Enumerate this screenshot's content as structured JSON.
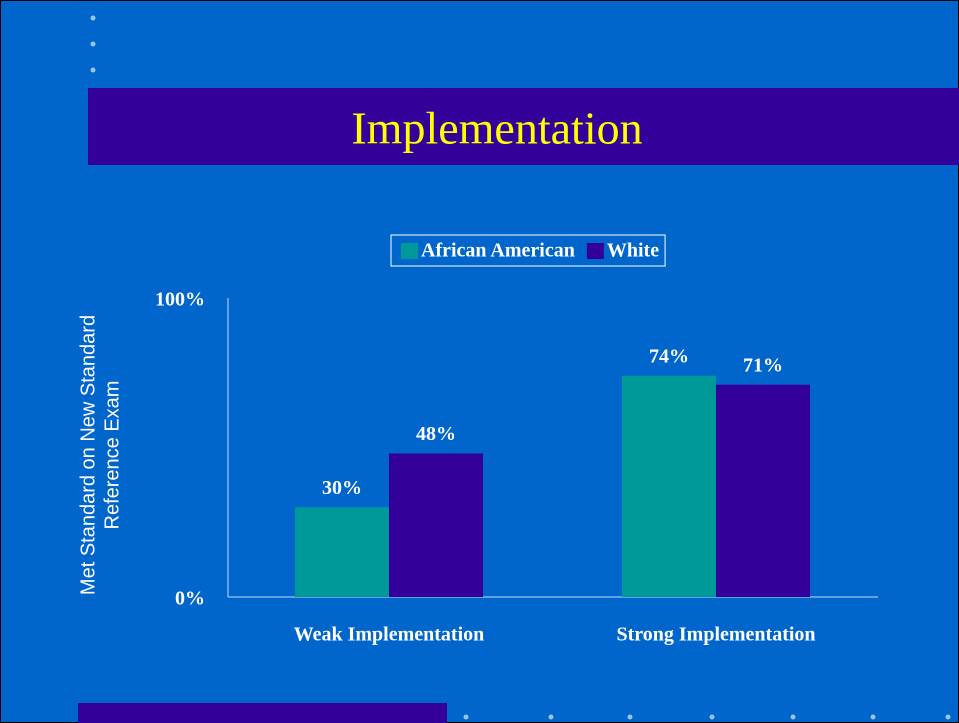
{
  "chart_data": {
    "type": "bar",
    "title": "Implementation",
    "ylabel": [
      "Met Standard on New Standard",
      "Reference Exam"
    ],
    "categories": [
      "Weak Implementation",
      "Strong Implementation"
    ],
    "series": [
      {
        "name": "African American",
        "color": "#009999",
        "values": [
          30,
          74
        ],
        "value_labels": [
          "30%",
          "74%"
        ]
      },
      {
        "name": "White",
        "color": "#330099",
        "values": [
          48,
          71
        ],
        "value_labels": [
          "48%",
          "71%"
        ]
      }
    ],
    "ylim": [
      0,
      100
    ],
    "yticks": [
      {
        "value": 0,
        "label": "0%"
      },
      {
        "value": 100,
        "label": "100%"
      }
    ],
    "grid": false,
    "legend": "top"
  }
}
